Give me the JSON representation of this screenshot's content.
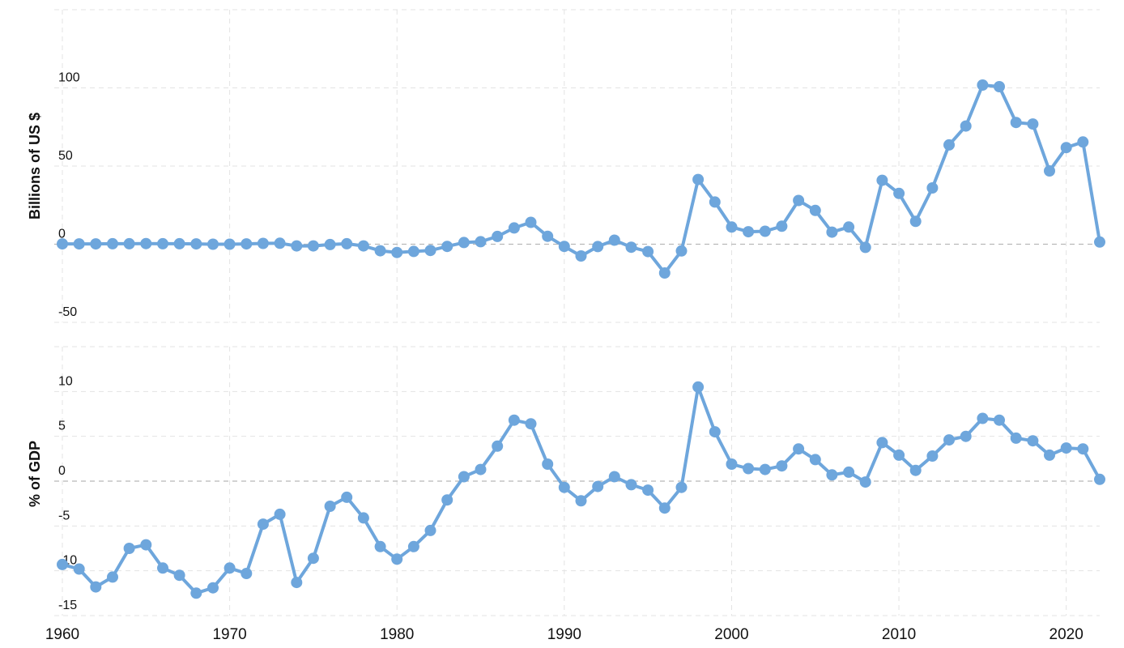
{
  "colors": {
    "series": "#6ea6dc",
    "grid": "#e3e3e3",
    "zero_line": "#b8b8b8",
    "text": "#111111"
  },
  "chart_data": [
    {
      "type": "line",
      "title": "",
      "xlabel": "",
      "ylabel": "Billions of US $",
      "grid": true,
      "xlim": [
        1960,
        2022
      ],
      "ylim": [
        -50,
        150
      ],
      "x_ticks": [
        1960,
        1970,
        1980,
        1990,
        2000,
        2010,
        2020
      ],
      "y_ticks": [
        -50,
        0,
        50,
        100
      ],
      "x": [
        1960,
        1961,
        1962,
        1963,
        1964,
        1965,
        1966,
        1967,
        1968,
        1969,
        1970,
        1971,
        1972,
        1973,
        1974,
        1975,
        1976,
        1977,
        1978,
        1979,
        1980,
        1981,
        1982,
        1983,
        1984,
        1985,
        1986,
        1987,
        1988,
        1989,
        1990,
        1991,
        1992,
        1993,
        1994,
        1995,
        1996,
        1997,
        1998,
        1999,
        2000,
        2001,
        2002,
        2003,
        2004,
        2005,
        2006,
        2007,
        2008,
        2009,
        2010,
        2011,
        2012,
        2013,
        2014,
        2015,
        2016,
        2017,
        2018,
        2019,
        2020,
        2021,
        2022
      ],
      "series": [
        {
          "values": [
            0.2,
            0.2,
            0.2,
            0.3,
            0.3,
            0.4,
            0.3,
            0.3,
            0.2,
            0.0,
            0.0,
            0.2,
            0.5,
            0.6,
            -1.1,
            -1.1,
            -0.2,
            0.3,
            -1.1,
            -4.2,
            -5.3,
            -4.6,
            -4.0,
            -1.4,
            1.1,
            1.6,
            5.0,
            10.4,
            14.0,
            5.1,
            -1.4,
            -7.5,
            -1.5,
            2.6,
            -1.9,
            -4.7,
            -18.4,
            -4.3,
            41.4,
            27.0,
            11.0,
            8.0,
            8.3,
            11.5,
            28.0,
            21.6,
            7.7,
            11.0,
            -2.0,
            40.9,
            32.5,
            14.6,
            36.0,
            63.5,
            75.6,
            101.8,
            100.8,
            77.9,
            76.9,
            46.9,
            61.8,
            65.4,
            1.4
          ]
        }
      ]
    },
    {
      "type": "line",
      "title": "",
      "xlabel": "",
      "ylabel": "% of GDP",
      "grid": true,
      "xlim": [
        1960,
        2022
      ],
      "ylim": [
        -15,
        15
      ],
      "x_ticks": [
        1960,
        1970,
        1980,
        1990,
        2000,
        2010,
        2020
      ],
      "y_ticks": [
        -15,
        -10,
        -5,
        0,
        5,
        10
      ],
      "x": [
        1960,
        1961,
        1962,
        1963,
        1964,
        1965,
        1966,
        1967,
        1968,
        1969,
        1970,
        1971,
        1972,
        1973,
        1974,
        1975,
        1976,
        1977,
        1978,
        1979,
        1980,
        1981,
        1982,
        1983,
        1984,
        1985,
        1986,
        1987,
        1988,
        1989,
        1990,
        1991,
        1992,
        1993,
        1994,
        1995,
        1996,
        1997,
        1998,
        1999,
        2000,
        2001,
        2002,
        2003,
        2004,
        2005,
        2006,
        2007,
        2008,
        2009,
        2010,
        2011,
        2012,
        2013,
        2014,
        2015,
        2016,
        2017,
        2018,
        2019,
        2020,
        2021,
        2022
      ],
      "series": [
        {
          "values": [
            -9.3,
            -9.8,
            -11.8,
            -10.7,
            -7.5,
            -7.1,
            -9.7,
            -10.5,
            -12.5,
            -11.9,
            -9.7,
            -10.3,
            -4.8,
            -3.7,
            -11.3,
            -8.6,
            -2.8,
            -1.8,
            -4.1,
            -7.3,
            -8.7,
            -7.3,
            -5.5,
            -2.1,
            0.5,
            1.3,
            3.9,
            6.8,
            6.4,
            1.9,
            -0.7,
            -2.2,
            -0.6,
            0.5,
            -0.4,
            -1.0,
            -3.0,
            -0.7,
            10.5,
            5.5,
            1.9,
            1.4,
            1.3,
            1.7,
            3.6,
            2.4,
            0.7,
            1.0,
            -0.1,
            4.3,
            2.9,
            1.2,
            2.8,
            4.6,
            5.0,
            7.0,
            6.8,
            4.8,
            4.5,
            2.9,
            3.7,
            3.6,
            0.2
          ]
        }
      ]
    }
  ]
}
